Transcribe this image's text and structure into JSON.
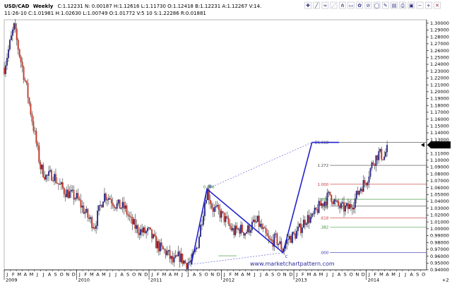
{
  "header": {
    "symbol": "USD/CAD",
    "timeframe": "Weekly",
    "line1_values": "C:1.12231  N:  0.00187  H:1.12616  L:1.11730  O:1.12418  B:1.12231  A:1.12267  V:14.",
    "line2_values": "11-26-10  C:1.01981  H:1.02630  L:1.00749  O:1.01772  V:5 10  S:1.22286  R:0.01881"
  },
  "toolbar": {
    "icons": [
      "crosshair-icon",
      "line-draw-icon",
      "wave-icon",
      "fib-fan-icon",
      "pitchfork-icon",
      "channel-icon",
      "gear-icon",
      "no-symbol-icon",
      "circle-tool-icon",
      "brush-icon",
      "ruler-icon",
      "print-icon",
      "save-icon",
      "zoom-out-icon",
      "zoom-in-icon",
      "close-icon"
    ]
  },
  "colors": {
    "bull": "#2a2a86",
    "bear": "#c0392b",
    "wick": "#333333",
    "pattern": "#2222cc",
    "price_tag_bg": "#000000",
    "price_tag_fg": "#ffffff",
    "fib_1618": "#444444",
    "fib_1272": "#444444",
    "fib_1000": "#cc3333",
    "fib_0886": "#2e8b2e",
    "fib_0786": "#444444",
    "fib_0618": "#cc3333",
    "fib_0382": "#2e8b2e",
    "fib_0000": "#3333aa"
  },
  "chart_data": {
    "type": "candlestick",
    "title": "",
    "xlabel": "",
    "ylabel": "",
    "ylim": [
      0.94,
      1.305
    ],
    "y_ticks": [
      1.3,
      1.29,
      1.28,
      1.27,
      1.26,
      1.25,
      1.24,
      1.23,
      1.22,
      1.21,
      1.2,
      1.19,
      1.18,
      1.17,
      1.16,
      1.15,
      1.14,
      1.13,
      1.12231,
      1.11,
      1.1,
      1.09,
      1.08,
      1.07,
      1.06,
      1.05,
      1.04,
      1.03,
      1.02,
      1.01,
      1.0,
      0.99,
      0.98,
      0.97,
      0.96,
      0.95,
      0.94
    ],
    "y_tick_labels": [
      "1.30000",
      "1.29000",
      "1.28000",
      "1.27000",
      "1.26000",
      "1.25000",
      "1.24000",
      "1.23000",
      "1.22000",
      "1.21000",
      "1.20000",
      "1.19000",
      "1.18000",
      "1.17000",
      "1.16000",
      "1.15000",
      "1.14000",
      "1.13000",
      "",
      "1.11000",
      "1.10000",
      "1.09000",
      "1.08000",
      "1.07000",
      "1.06000",
      "1.05000",
      "1.04000",
      "1.03000",
      "1.02000",
      "1.01000",
      "1.00000",
      "0.99000",
      "0.98000",
      "0.97000",
      "0.96000",
      "0.95000",
      "0.94000"
    ],
    "x_month_labels": [
      "J",
      "F",
      "M",
      "A",
      "M",
      "J",
      "J",
      "A",
      "S",
      "O",
      "N",
      "D",
      "J",
      "F",
      "M",
      "A",
      "M",
      "J",
      "J",
      "A",
      "S",
      "O",
      "N",
      "D",
      "J",
      "F",
      "M",
      "A",
      "M",
      "J",
      "J",
      "A",
      "S",
      "O",
      "N",
      "D",
      "J",
      "F",
      "M",
      "A",
      "M",
      "J",
      "J",
      "A",
      "S",
      "O",
      "N",
      "D",
      "J",
      "F",
      "M",
      "A",
      "M",
      "J",
      "J",
      "A",
      "S",
      "O",
      "N",
      "D",
      "J",
      "F",
      "M",
      "A",
      "M",
      "J",
      "J",
      "A",
      "S",
      "O"
    ],
    "x_years": [
      {
        "label": "2009",
        "month_index": 0
      },
      {
        "label": "2010",
        "month_index": 12
      },
      {
        "label": "2011",
        "month_index": 24
      },
      {
        "label": "2012",
        "month_index": 36
      },
      {
        "label": "2013",
        "month_index": 48
      },
      {
        "label": "2014",
        "month_index": 60
      }
    ],
    "x_axis_corner": "+2",
    "current_price": "1.12231",
    "current_price_value": 1.12231,
    "anchors": [
      {
        "m": 0.0,
        "p": 1.235
      },
      {
        "m": 1.6,
        "p": 1.295
      },
      {
        "m": 2.4,
        "p": 1.26
      },
      {
        "m": 3.6,
        "p": 1.21
      },
      {
        "m": 5.0,
        "p": 1.14
      },
      {
        "m": 6.0,
        "p": 1.09
      },
      {
        "m": 7.0,
        "p": 1.075
      },
      {
        "m": 8.0,
        "p": 1.08
      },
      {
        "m": 9.0,
        "p": 1.065
      },
      {
        "m": 10.0,
        "p": 1.055
      },
      {
        "m": 11.0,
        "p": 1.05
      },
      {
        "m": 12.0,
        "p": 1.045
      },
      {
        "m": 13.0,
        "p": 1.03
      },
      {
        "m": 14.0,
        "p": 1.015
      },
      {
        "m": 15.0,
        "p": 1.005
      },
      {
        "m": 16.5,
        "p": 1.05
      },
      {
        "m": 17.5,
        "p": 1.045
      },
      {
        "m": 18.5,
        "p": 1.035
      },
      {
        "m": 20.0,
        "p": 1.03
      },
      {
        "m": 21.0,
        "p": 1.01
      },
      {
        "m": 22.0,
        "p": 1.0
      },
      {
        "m": 23.0,
        "p": 0.995
      },
      {
        "m": 24.0,
        "p": 0.995
      },
      {
        "m": 25.0,
        "p": 0.98
      },
      {
        "m": 26.0,
        "p": 0.97
      },
      {
        "m": 27.0,
        "p": 0.965
      },
      {
        "m": 28.0,
        "p": 0.95
      },
      {
        "m": 29.0,
        "p": 0.96
      },
      {
        "m": 30.0,
        "p": 0.95
      },
      {
        "m": 31.0,
        "p": 0.952
      },
      {
        "m": 32.0,
        "p": 0.975
      },
      {
        "m": 33.6,
        "p": 1.058
      },
      {
        "m": 34.5,
        "p": 1.03
      },
      {
        "m": 35.5,
        "p": 1.025
      },
      {
        "m": 36.5,
        "p": 1.015
      },
      {
        "m": 38.0,
        "p": 0.995
      },
      {
        "m": 39.0,
        "p": 1.0
      },
      {
        "m": 40.0,
        "p": 0.995
      },
      {
        "m": 41.0,
        "p": 1.005
      },
      {
        "m": 42.0,
        "p": 1.01
      },
      {
        "m": 43.0,
        "p": 0.995
      },
      {
        "m": 44.0,
        "p": 0.98
      },
      {
        "m": 45.0,
        "p": 0.985
      },
      {
        "m": 46.2,
        "p": 0.97
      },
      {
        "m": 47.0,
        "p": 0.985
      },
      {
        "m": 48.0,
        "p": 0.99
      },
      {
        "m": 49.0,
        "p": 1.0
      },
      {
        "m": 50.0,
        "p": 1.015
      },
      {
        "m": 51.0,
        "p": 1.015
      },
      {
        "m": 52.0,
        "p": 1.03
      },
      {
        "m": 53.0,
        "p": 1.04
      },
      {
        "m": 54.0,
        "p": 1.05
      },
      {
        "m": 55.0,
        "p": 1.035
      },
      {
        "m": 56.0,
        "p": 1.03
      },
      {
        "m": 57.0,
        "p": 1.03
      },
      {
        "m": 58.0,
        "p": 1.04
      },
      {
        "m": 59.0,
        "p": 1.06
      },
      {
        "m": 60.0,
        "p": 1.07
      },
      {
        "m": 61.0,
        "p": 1.095
      },
      {
        "m": 62.0,
        "p": 1.11
      },
      {
        "m": 63.0,
        "p": 1.105
      },
      {
        "m": 63.6,
        "p": 1.1223
      }
    ],
    "fib_levels": [
      {
        "label": "1.618",
        "price": 1.126,
        "color_key": "fib_1618",
        "x_start_month": 54.0
      },
      {
        "label": "1.272",
        "price": 1.0925,
        "color_key": "fib_1272",
        "x_start_month": 54.0
      },
      {
        "label": "1.000",
        "price": 1.065,
        "color_key": "fib_1000",
        "x_start_month": 54.0
      },
      {
        "label": ".886",
        "price": 1.043,
        "color_key": "fib_0886",
        "x_start_month": 54.0
      },
      {
        "label": ".786",
        "price": 1.033,
        "color_key": "fib_0786",
        "x_start_month": 54.0
      },
      {
        "label": ".618",
        "price": 1.016,
        "color_key": "fib_0618",
        "x_start_month": 54.0
      },
      {
        "label": ".382",
        "price": 1.0025,
        "color_key": "fib_0382",
        "x_start_month": 54.0
      },
      {
        "label": ".000",
        "price": 0.9655,
        "color_key": "fib_0000",
        "x_start_month": 54.0
      }
    ],
    "pattern_points": [
      {
        "label": "A",
        "m": 31.0,
        "p": 0.948
      },
      {
        "label": "B",
        "m": 33.6,
        "p": 1.058
      },
      {
        "label": "C",
        "m": 46.2,
        "p": 0.965
      },
      {
        "label": "D",
        "m": 51.0,
        "p": 1.126
      }
    ],
    "pattern_xb_label": "0.886",
    "pattern_line_up_to_d_end_month": 55.5
  },
  "watermark": "www.marketchartpattern.com",
  "point_labels": {
    "A": "A",
    "B": "B",
    "C": "C",
    "D": "D"
  }
}
